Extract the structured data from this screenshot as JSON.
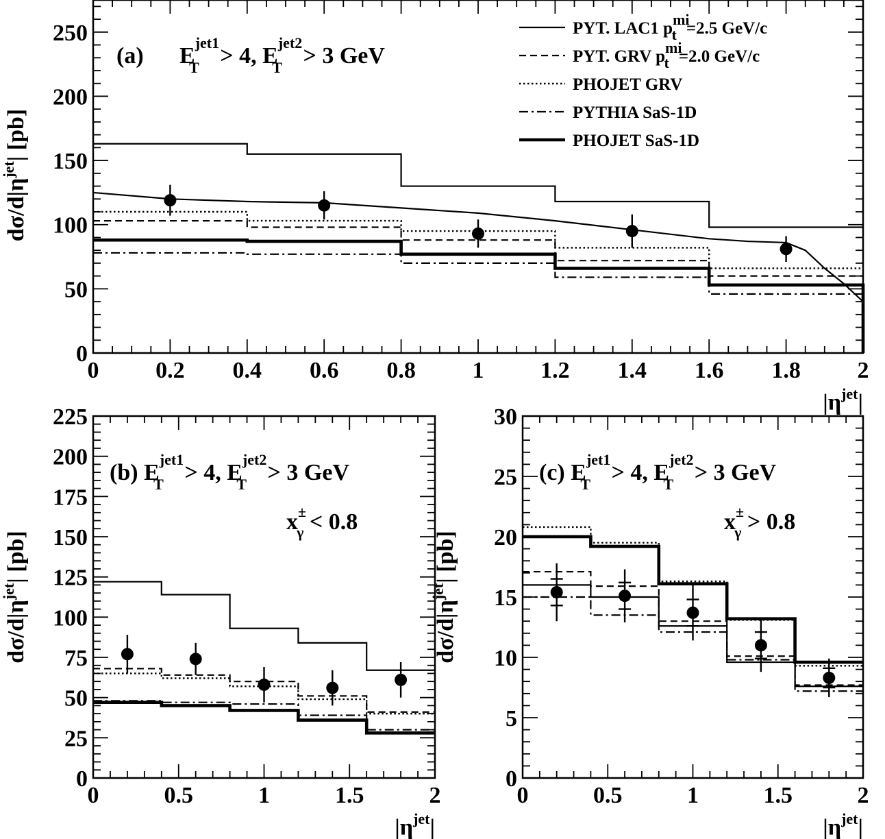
{
  "chart_data": [
    {
      "type": "line",
      "panel_label": "(a)",
      "cut_label": {
        "e": "E",
        "sub": "T",
        "sup1": "jet1",
        "mid": " > 4, ",
        "sup2": "jet2",
        "tail": " > 3 GeV"
      },
      "x_label": {
        "base": "|η",
        "sup": "jet",
        "close": "|"
      },
      "y_label": {
        "pre": "dσ/d|η",
        "sup": "jet",
        "post": "| [pb]"
      },
      "xlim": [
        0,
        2
      ],
      "ylim": [
        0,
        275
      ],
      "x_ticks": [
        0,
        0.2,
        0.4,
        0.6,
        0.8,
        1,
        1.2,
        1.4,
        1.6,
        1.8,
        2
      ],
      "x_tick_labels": [
        "0",
        "0.2",
        "0.4",
        "0.6",
        "0.8",
        "1",
        "1.2",
        "1.4",
        "1.6",
        "1.8",
        "2"
      ],
      "y_ticks": [
        0,
        50,
        100,
        150,
        200,
        250
      ],
      "y_tick_labels": [
        "0",
        "50",
        "100",
        "150",
        "200",
        "250"
      ],
      "bin_edges": [
        0,
        0.4,
        0.8,
        1.2,
        1.6,
        2.0
      ],
      "series": [
        {
          "name": "PYT. LAC1",
          "style": "solid",
          "values": [
            163,
            155,
            130,
            118,
            98
          ]
        },
        {
          "name": "PYT. GRV",
          "style": "dashed",
          "values": [
            103,
            98,
            88,
            72,
            60
          ]
        },
        {
          "name": "PHOJET GRV",
          "style": "dotted",
          "values": [
            110,
            103,
            95,
            82,
            66
          ]
        },
        {
          "name": "PYTHIA SaS-1D",
          "style": "dashdot",
          "values": [
            78,
            77,
            70,
            59,
            46
          ]
        },
        {
          "name": "PHOJET SaS-1D",
          "style": "thick",
          "values": [
            88,
            87,
            77,
            66,
            53
          ]
        }
      ],
      "smooth_curve": {
        "x": [
          0,
          0.2,
          0.4,
          0.6,
          0.8,
          1.0,
          1.2,
          1.4,
          1.6,
          1.7,
          1.8,
          1.85,
          1.9,
          1.95,
          2.0
        ],
        "y": [
          125,
          120,
          118,
          117,
          113,
          109,
          103,
          96,
          89,
          87,
          86,
          80,
          66,
          54,
          40
        ]
      },
      "points": {
        "x": [
          0.2,
          0.6,
          1.0,
          1.4,
          1.8
        ],
        "y": [
          119,
          115,
          93,
          95,
          81
        ],
        "err": [
          12,
          11,
          11,
          13,
          10
        ]
      },
      "legend": [
        {
          "style": "solid",
          "text": "PYT. LAC1 p",
          "sub": "t",
          "sup": "mi",
          "rest": "=2.5 GeV/c"
        },
        {
          "style": "dashed",
          "text": "PYT. GRV p",
          "sub": "t",
          "sup": "mi",
          "rest": "=2.0 GeV/c"
        },
        {
          "style": "dotted",
          "text": "PHOJET GRV",
          "sub": "",
          "sup": "",
          "rest": ""
        },
        {
          "style": "dashdot",
          "text": "PYTHIA SaS-1D",
          "sub": "",
          "sup": "",
          "rest": ""
        },
        {
          "style": "thick",
          "text": "PHOJET SaS-1D",
          "sub": "",
          "sup": "",
          "rest": ""
        }
      ],
      "legend_position": "top-right"
    },
    {
      "type": "line",
      "panel_label": "(b)",
      "cut_label": {
        "e": "E",
        "sub": "T",
        "sup1": "jet1",
        "mid": " > 4, ",
        "sup2": "jet2",
        "tail": " > 3 GeV"
      },
      "xgamma_label": {
        "base": "x",
        "sub": "γ",
        "sup": "±",
        "tail": " < 0.8"
      },
      "x_label": {
        "base": "|η",
        "sup": "jet",
        "close": "|"
      },
      "y_label": {
        "pre": "dσ/d|η",
        "sup": "jet",
        "post": "| [pb]"
      },
      "xlim": [
        0,
        2
      ],
      "ylim": [
        0,
        225
      ],
      "x_ticks": [
        0,
        0.5,
        1,
        1.5,
        2
      ],
      "x_tick_labels": [
        "0",
        "0.5",
        "1",
        "1.5",
        "2"
      ],
      "y_ticks": [
        0,
        25,
        50,
        75,
        100,
        125,
        150,
        175,
        200,
        225
      ],
      "y_tick_labels": [
        "0",
        "25",
        "50",
        "75",
        "100",
        "125",
        "150",
        "175",
        "200",
        "225"
      ],
      "bin_edges": [
        0,
        0.4,
        0.8,
        1.2,
        1.6,
        2.0
      ],
      "series": [
        {
          "name": "PYT. LAC1",
          "style": "solid",
          "values": [
            122,
            114,
            93,
            84,
            67
          ]
        },
        {
          "name": "PYT. GRV",
          "style": "dashed",
          "values": [
            68,
            64,
            60,
            51,
            41
          ]
        },
        {
          "name": "PHOJET GRV",
          "style": "dotted",
          "values": [
            65,
            62,
            57,
            49,
            40
          ]
        },
        {
          "name": "PYTHIA SaS-1D",
          "style": "dashdot",
          "values": [
            48,
            47,
            46,
            39,
            30
          ]
        },
        {
          "name": "PHOJET SaS-1D",
          "style": "thick",
          "values": [
            47,
            45,
            42,
            36,
            28
          ]
        }
      ],
      "points": {
        "x": [
          0.2,
          0.6,
          1.0,
          1.4,
          1.8
        ],
        "y": [
          77,
          74,
          58,
          56,
          61
        ],
        "err": [
          12,
          10,
          11,
          11,
          11
        ]
      }
    },
    {
      "type": "line",
      "panel_label": "(c)",
      "cut_label": {
        "e": "E",
        "sub": "T",
        "sup1": "jet1",
        "mid": " > 4, ",
        "sup2": "jet2",
        "tail": " > 3 GeV"
      },
      "xgamma_label": {
        "base": "x",
        "sub": "γ",
        "sup": "±",
        "tail": " > 0.8"
      },
      "x_label": {
        "base": "|η",
        "sup": "jet",
        "close": "|"
      },
      "y_label": {
        "pre": "dσ/d|η",
        "sup": "jet",
        "post": "| [pb]"
      },
      "xlim": [
        0,
        2
      ],
      "ylim": [
        0,
        30
      ],
      "x_ticks": [
        0,
        0.5,
        1,
        1.5,
        2
      ],
      "x_tick_labels": [
        "0",
        "0.5",
        "1",
        "1.5",
        "2"
      ],
      "y_ticks": [
        0,
        5,
        10,
        15,
        20,
        25,
        30
      ],
      "y_tick_labels": [
        "0",
        "5",
        "10",
        "15",
        "20",
        "25",
        "30"
      ],
      "bin_edges": [
        0,
        0.4,
        0.8,
        1.2,
        1.6,
        2.0
      ],
      "series": [
        {
          "name": "PYT. LAC1",
          "style": "solid",
          "values": [
            16.0,
            15.0,
            12.6,
            9.6,
            7.6
          ]
        },
        {
          "name": "PYT. GRV",
          "style": "dashed",
          "values": [
            17.1,
            15.9,
            13.0,
            10.1,
            7.7
          ]
        },
        {
          "name": "PHOJET GRV",
          "style": "dotted",
          "values": [
            20.8,
            19.5,
            16.3,
            13.1,
            9.3
          ]
        },
        {
          "name": "PYTHIA SaS-1D",
          "style": "dashdot",
          "values": [
            15.0,
            13.5,
            12.1,
            9.8,
            7.2
          ]
        },
        {
          "name": "PHOJET SaS-1D",
          "style": "thick",
          "values": [
            20.0,
            19.2,
            16.1,
            13.2,
            9.6
          ]
        }
      ],
      "points": {
        "x": [
          0.2,
          0.6,
          1.0,
          1.4,
          1.8
        ],
        "y": [
          15.4,
          15.1,
          13.7,
          11.0,
          8.3
        ],
        "err": [
          2.4,
          2.2,
          2.3,
          2.2,
          1.6
        ],
        "sys_err": [
          1.1,
          1.1,
          1.1,
          1.1,
          0.8
        ]
      }
    }
  ]
}
